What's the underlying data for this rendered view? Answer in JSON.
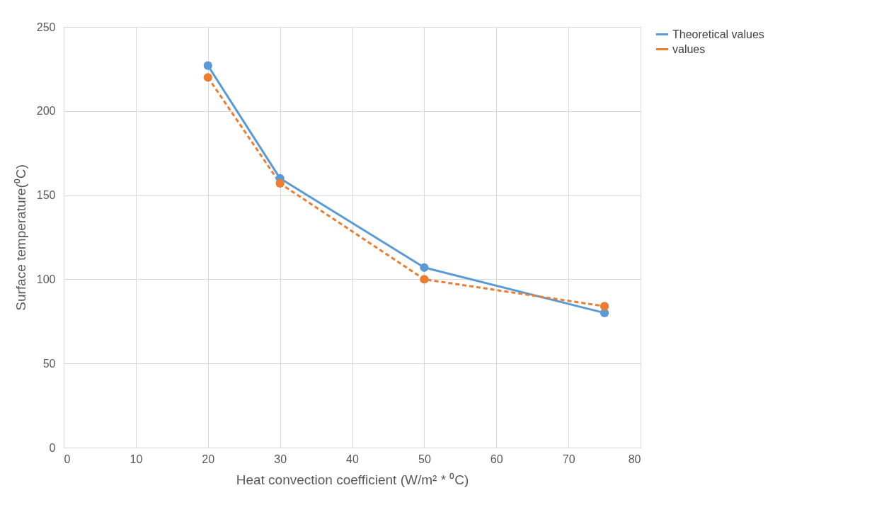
{
  "chart_data": {
    "type": "line",
    "xlabel": "Heat convection coefficient (W/m² * ⁰C)",
    "ylabel": "Surface temperature(⁰C)",
    "x": [
      20,
      30,
      50,
      75
    ],
    "series": [
      {
        "name": "Theoretical values",
        "color": "#5b9bd5",
        "values": [
          227,
          160,
          107,
          80
        ],
        "line_style": "solid"
      },
      {
        "name": "values",
        "color": "#ed7d31",
        "values": [
          220,
          157,
          100,
          84
        ],
        "line_style": "dashed"
      }
    ],
    "xlim": [
      0,
      80
    ],
    "xticks": [
      0,
      10,
      20,
      30,
      40,
      50,
      60,
      70,
      80
    ],
    "ylim": [
      0,
      250
    ],
    "yticks": [
      0,
      50,
      100,
      150,
      200,
      250
    ],
    "grid": true,
    "legend": "right",
    "marker": "circle"
  }
}
